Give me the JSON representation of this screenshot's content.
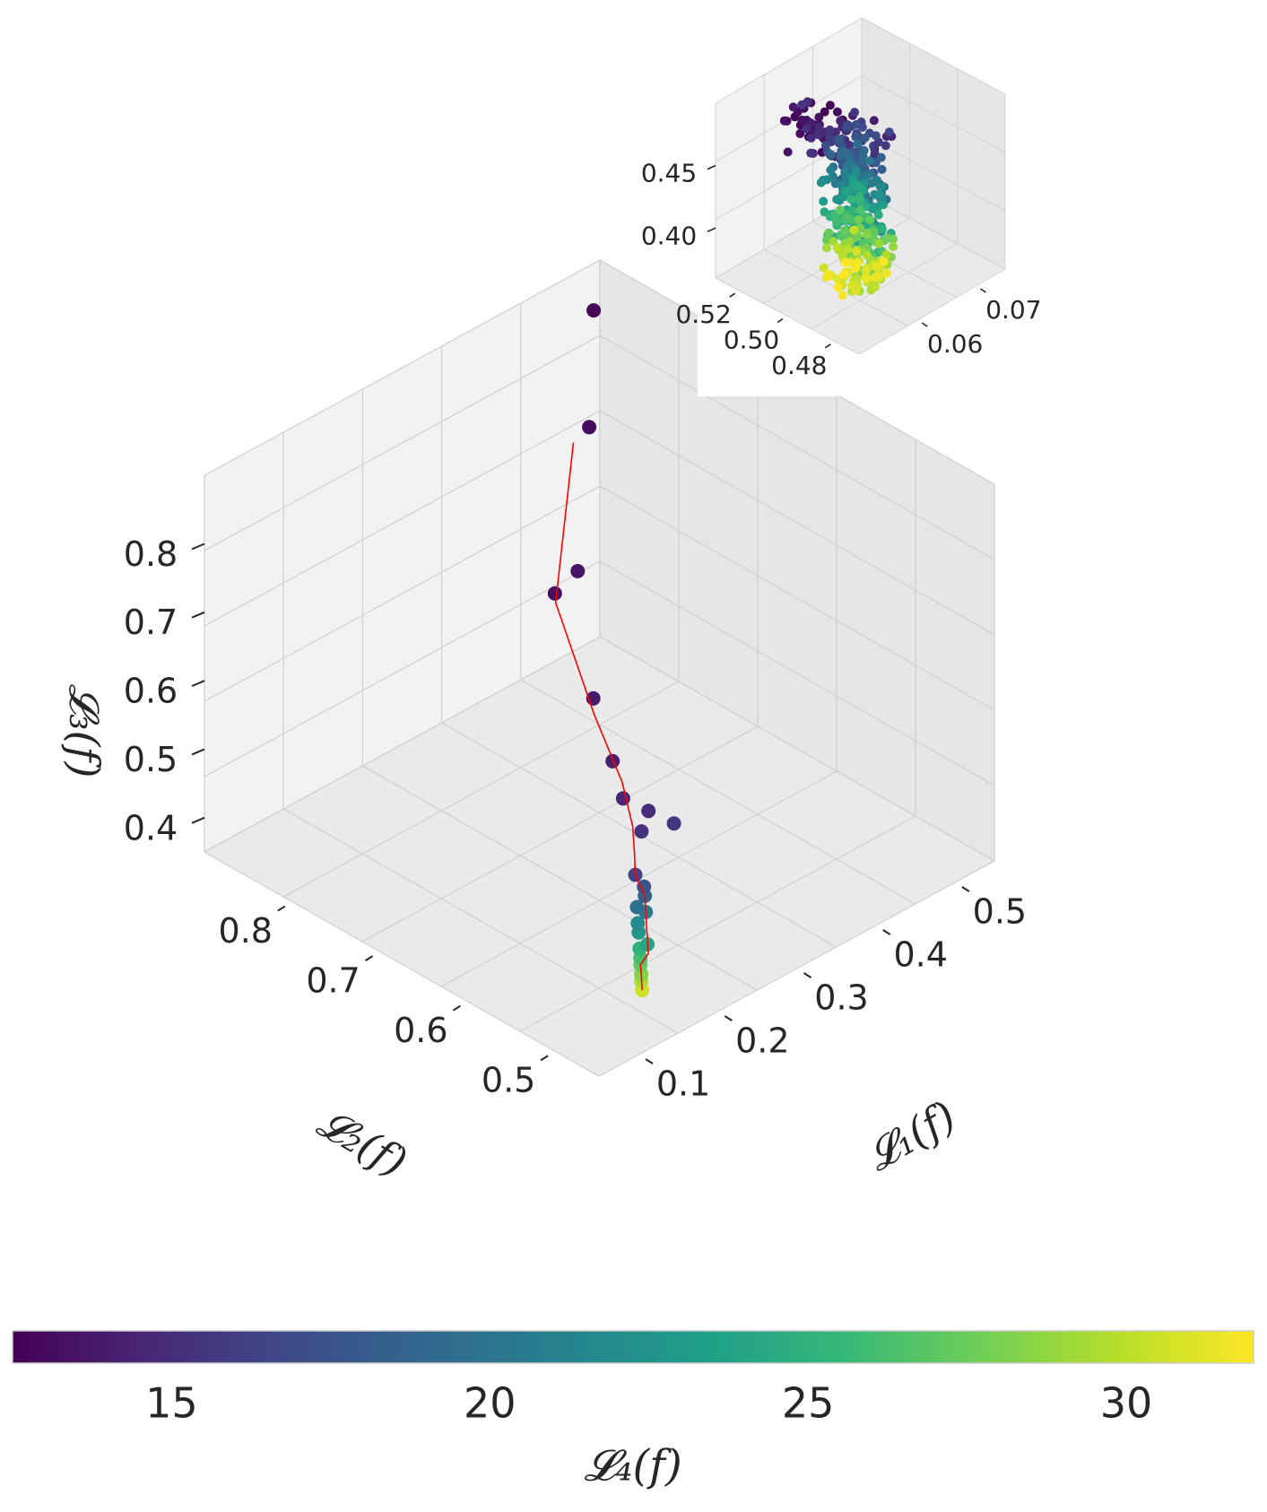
{
  "chart_data": [
    {
      "type": "scatter",
      "subtype": "3d-scatter-with-trajectory",
      "panel": "main",
      "title": "",
      "xlabel": "𝓛₁(f)",
      "ylabel": "𝓛₂(f)",
      "zlabel": "𝓛₃(f)",
      "xlim": [
        0.05,
        0.55
      ],
      "ylim": [
        0.45,
        0.9
      ],
      "zlim": [
        0.35,
        0.9
      ],
      "x_ticks": [
        "0.1",
        "0.2",
        "0.3",
        "0.4",
        "0.5"
      ],
      "y_ticks": [
        "0.5",
        "0.6",
        "0.7",
        "0.8"
      ],
      "z_ticks": [
        "0.4",
        "0.5",
        "0.6",
        "0.7",
        "0.8"
      ],
      "grid": true,
      "color_by": "𝓛₄(f)",
      "points": [
        {
          "x": 0.52,
          "y": 0.88,
          "z": 0.86,
          "c": 12.8
        },
        {
          "x": 0.47,
          "y": 0.84,
          "z": 0.75,
          "c": 13.1
        },
        {
          "x": 0.36,
          "y": 0.78,
          "z": 0.62,
          "c": 13.3
        },
        {
          "x": 0.4,
          "y": 0.79,
          "z": 0.62,
          "c": 13.6
        },
        {
          "x": 0.32,
          "y": 0.7,
          "z": 0.55,
          "c": 13.9
        },
        {
          "x": 0.3,
          "y": 0.66,
          "z": 0.5,
          "c": 14.2
        },
        {
          "x": 0.28,
          "y": 0.63,
          "z": 0.48,
          "c": 14.5
        },
        {
          "x": 0.29,
          "y": 0.61,
          "z": 0.47,
          "c": 14.9
        },
        {
          "x": 0.27,
          "y": 0.6,
          "z": 0.46,
          "c": 15.3
        },
        {
          "x": 0.3,
          "y": 0.59,
          "z": 0.46,
          "c": 15.7
        },
        {
          "x": 0.24,
          "y": 0.58,
          "z": 0.43,
          "c": 16.4
        },
        {
          "x": 0.24,
          "y": 0.57,
          "z": 0.42,
          "c": 17.5
        },
        {
          "x": 0.23,
          "y": 0.56,
          "z": 0.42,
          "c": 18.6
        },
        {
          "x": 0.22,
          "y": 0.56,
          "z": 0.41,
          "c": 19.6
        },
        {
          "x": 0.22,
          "y": 0.55,
          "z": 0.41,
          "c": 20.6
        },
        {
          "x": 0.21,
          "y": 0.55,
          "z": 0.4,
          "c": 21.8
        },
        {
          "x": 0.2,
          "y": 0.54,
          "z": 0.4,
          "c": 22.8
        },
        {
          "x": 0.2,
          "y": 0.53,
          "z": 0.39,
          "c": 24.0
        },
        {
          "x": 0.19,
          "y": 0.53,
          "z": 0.39,
          "c": 25.1
        },
        {
          "x": 0.18,
          "y": 0.52,
          "z": 0.39,
          "c": 26.2
        },
        {
          "x": 0.18,
          "y": 0.52,
          "z": 0.38,
          "c": 27.3
        },
        {
          "x": 0.17,
          "y": 0.51,
          "z": 0.38,
          "c": 28.4
        },
        {
          "x": 0.17,
          "y": 0.51,
          "z": 0.37,
          "c": 29.5
        },
        {
          "x": 0.16,
          "y": 0.5,
          "z": 0.37,
          "c": 30.6
        },
        {
          "x": 0.16,
          "y": 0.5,
          "z": 0.37,
          "c": 31.6
        }
      ],
      "line": {
        "color": "#ff0000",
        "description": "running-mean trajectory",
        "x": [
          0.45,
          0.35,
          0.31,
          0.29,
          0.27,
          0.25,
          0.24,
          0.23,
          0.22,
          0.21,
          0.2,
          0.19,
          0.18,
          0.17,
          0.16
        ],
        "y": [
          0.84,
          0.77,
          0.69,
          0.64,
          0.61,
          0.59,
          0.58,
          0.56,
          0.55,
          0.54,
          0.53,
          0.52,
          0.52,
          0.51,
          0.5
        ],
        "z": [
          0.74,
          0.62,
          0.54,
          0.49,
          0.46,
          0.45,
          0.43,
          0.42,
          0.41,
          0.4,
          0.4,
          0.39,
          0.38,
          0.38,
          0.37
        ]
      }
    },
    {
      "type": "scatter",
      "subtype": "3d-scatter",
      "panel": "inset",
      "title": "",
      "xlim": [
        0.05,
        0.075
      ],
      "ylim": [
        0.47,
        0.53
      ],
      "zlim": [
        0.36,
        0.5
      ],
      "x_ticks": [
        "0.06",
        "0.07"
      ],
      "y_ticks": [
        "0.48",
        "0.50",
        "0.52"
      ],
      "z_ticks": [
        "0.40",
        "0.45"
      ],
      "grid": true,
      "color_by": "𝓛₄(f)",
      "point_count": 400,
      "trend": "points descend from dark purple (𝓛₃≈0.49) at top to yellow (𝓛₃≈0.37) at bottom"
    },
    {
      "type": "colorbar",
      "label": "𝓛₄(f)",
      "colormap": "viridis",
      "range": [
        12.5,
        32
      ],
      "ticks": [
        "15",
        "20",
        "25",
        "30"
      ]
    }
  ]
}
